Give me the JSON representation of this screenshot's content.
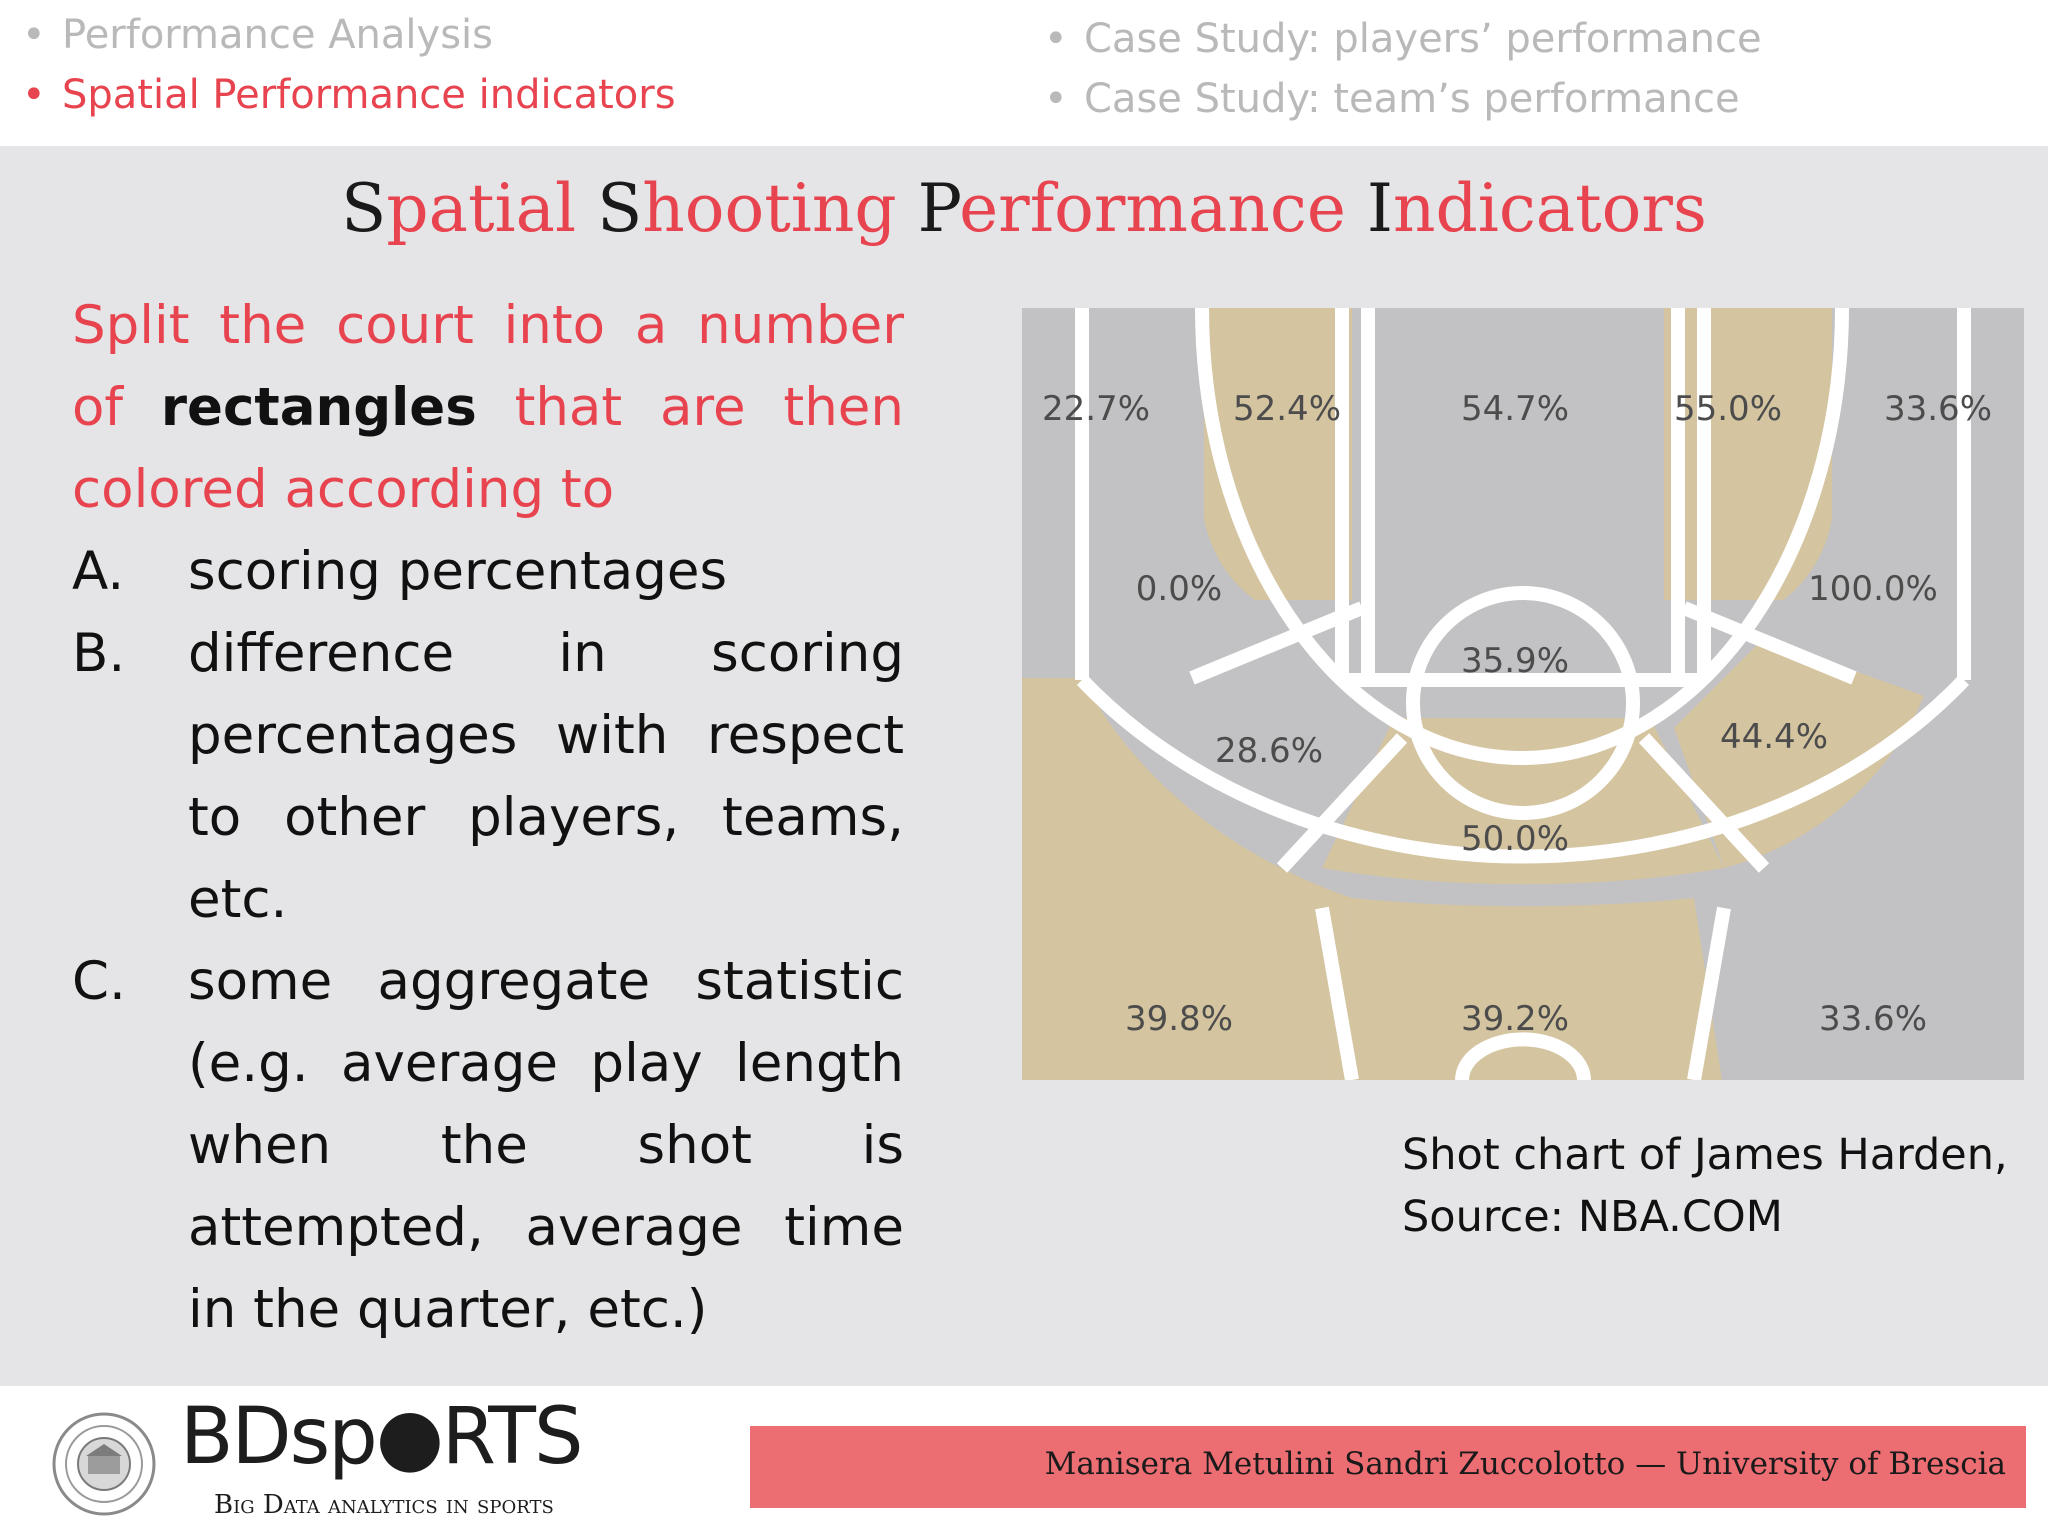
{
  "nav": {
    "items_left": [
      {
        "label": "Performance Analysis",
        "active": false
      },
      {
        "label": "Spatial Performance indicators",
        "active": true
      }
    ],
    "items_right": [
      {
        "label": "Case Study: players’ performance",
        "active": false
      },
      {
        "label": "Case Study: team’s performance",
        "active": false
      }
    ],
    "bullet": "•"
  },
  "title": {
    "word1_cap": "S",
    "word1_rest": "patial",
    "word2_cap": "S",
    "word2_rest": "hooting",
    "word3_cap": "P",
    "word3_rest": "erformance",
    "word4_cap": "I",
    "word4_rest": "ndicators"
  },
  "body": {
    "intro_part1": "Split the court into a number of",
    "intro_bold": "rectangles",
    "intro_part2": "that are then colored according to",
    "list": [
      {
        "letter": "A.",
        "text": "scoring percentages"
      },
      {
        "letter": "B.",
        "text": "difference in scoring percentages with respect to other players, teams, etc."
      },
      {
        "letter": "C.",
        "text": "some aggregate statistic (e.g. average play length when the shot is attempted, average time in the quarter, etc.)"
      }
    ]
  },
  "chart": {
    "colors": {
      "gold": "#d4c4a0",
      "gray": "#c2c2c4",
      "line": "#ffffff",
      "label": "#4c4c4c"
    },
    "zones": [
      {
        "label": "22.7%",
        "color": "gray"
      },
      {
        "label": "52.4%",
        "color": "gold"
      },
      {
        "label": "54.7%",
        "color": "gray"
      },
      {
        "label": "55.0%",
        "color": "gold"
      },
      {
        "label": "33.6%",
        "color": "gray"
      },
      {
        "label": "0.0%",
        "color": "gray"
      },
      {
        "label": "100.0%",
        "color": "gray"
      },
      {
        "label": "35.9%",
        "color": "gray"
      },
      {
        "label": "28.6%",
        "color": "gray"
      },
      {
        "label": "44.4%",
        "color": "gold"
      },
      {
        "label": "50.0%",
        "color": "gold"
      },
      {
        "label": "39.8%",
        "color": "gold"
      },
      {
        "label": "39.2%",
        "color": "gold"
      },
      {
        "label": "33.6%",
        "color": "gray"
      }
    ]
  },
  "caption": {
    "line1": "Shot chart of James Harden,",
    "line2": "Source: NBA.COM"
  },
  "footer": {
    "brand_name": "BDsp●RTS",
    "brand_tagline": "Big Data analytics in sports",
    "authors": "Manisera Metulini Sandri Zuccolotto — University of Brescia"
  }
}
